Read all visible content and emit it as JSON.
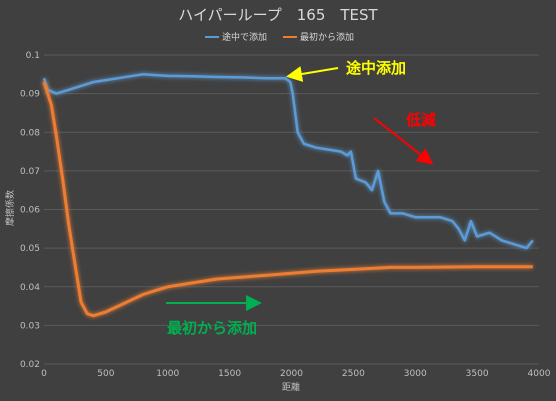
{
  "chart_data": {
    "type": "line",
    "title": "ハイパーループ　165　TEST",
    "xlabel": "距離",
    "ylabel": "摩擦係数",
    "xlim": [
      0,
      4000
    ],
    "ylim": [
      0.02,
      0.1
    ],
    "xticks": [
      0,
      500,
      1000,
      1500,
      2000,
      2500,
      3000,
      3500,
      4000
    ],
    "yticks": [
      0.02,
      0.03,
      0.04,
      0.05,
      0.06,
      0.07,
      0.08,
      0.09,
      0.1
    ],
    "grid": "horizontal",
    "legend_position": "top",
    "series": [
      {
        "name": "途中で添加",
        "color": "#5b9bd5",
        "x": [
          0,
          30,
          100,
          200,
          300,
          400,
          500,
          600,
          700,
          800,
          900,
          1000,
          1200,
          1400,
          1600,
          1800,
          1900,
          1950,
          1990,
          2010,
          2050,
          2100,
          2200,
          2300,
          2400,
          2450,
          2480,
          2520,
          2600,
          2650,
          2700,
          2750,
          2800,
          2900,
          3000,
          3100,
          3200,
          3300,
          3350,
          3400,
          3450,
          3500,
          3600,
          3700,
          3800,
          3850,
          3900,
          3950
        ],
        "y": [
          0.094,
          0.091,
          0.09,
          0.091,
          0.092,
          0.093,
          0.0935,
          0.094,
          0.0945,
          0.095,
          0.0948,
          0.0946,
          0.0945,
          0.0943,
          0.0942,
          0.094,
          0.094,
          0.094,
          0.093,
          0.09,
          0.08,
          0.077,
          0.076,
          0.0755,
          0.075,
          0.074,
          0.075,
          0.068,
          0.067,
          0.065,
          0.07,
          0.062,
          0.059,
          0.059,
          0.058,
          0.058,
          0.058,
          0.057,
          0.055,
          0.052,
          0.057,
          0.053,
          0.054,
          0.052,
          0.051,
          0.0505,
          0.05,
          0.052
        ]
      },
      {
        "name": "最初から添加",
        "color": "#ed7d31",
        "x": [
          0,
          30,
          60,
          100,
          150,
          200,
          250,
          300,
          350,
          400,
          450,
          500,
          600,
          700,
          800,
          900,
          1000,
          1200,
          1400,
          1600,
          1800,
          2000,
          2200,
          2500,
          2800,
          3000,
          3500,
          3950
        ],
        "y": [
          0.093,
          0.09,
          0.087,
          0.079,
          0.068,
          0.056,
          0.046,
          0.036,
          0.033,
          0.0325,
          0.033,
          0.0335,
          0.035,
          0.0365,
          0.038,
          0.039,
          0.04,
          0.041,
          0.042,
          0.0425,
          0.043,
          0.0435,
          0.044,
          0.0445,
          0.045,
          0.045,
          0.0452,
          0.0452
        ]
      }
    ],
    "annotations": [
      {
        "text": "途中添加",
        "color": "#ffff00"
      },
      {
        "text": "低減",
        "color": "#ff0000"
      },
      {
        "text": "最初から添加",
        "color": "#00b050"
      }
    ]
  }
}
